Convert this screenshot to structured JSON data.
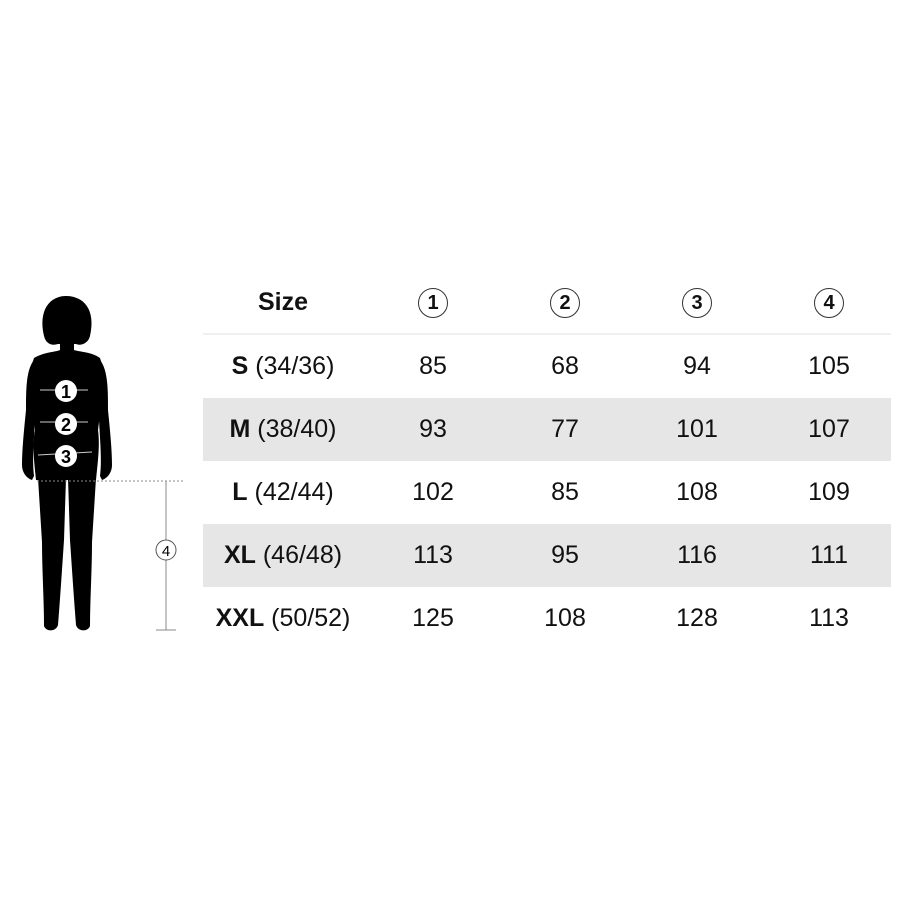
{
  "figure": {
    "markers": [
      "1",
      "2",
      "3"
    ],
    "length_marker": "4"
  },
  "table": {
    "header": {
      "size": "Size",
      "columns": [
        "1",
        "2",
        "3",
        "4"
      ]
    },
    "rows": [
      {
        "size": "S",
        "eu": "(34/36)",
        "values": [
          "85",
          "68",
          "94",
          "105"
        ]
      },
      {
        "size": "M",
        "eu": "(38/40)",
        "values": [
          "93",
          "77",
          "101",
          "107"
        ]
      },
      {
        "size": "L",
        "eu": "(42/44)",
        "values": [
          "102",
          "85",
          "108",
          "109"
        ]
      },
      {
        "size": "XL",
        "eu": "(46/48)",
        "values": [
          "113",
          "95",
          "116",
          "111"
        ]
      },
      {
        "size": "XXL",
        "eu": "(50/52)",
        "values": [
          "125",
          "108",
          "128",
          "113"
        ]
      }
    ],
    "stripe_color": "#e6e6e6"
  }
}
